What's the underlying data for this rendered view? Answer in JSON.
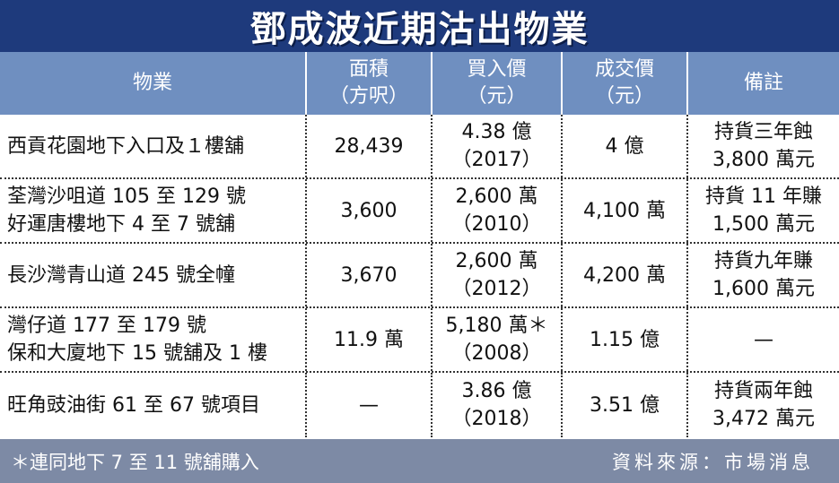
{
  "title": "鄧成波近期沽出物業",
  "headers": [
    {
      "line1": "物業",
      "line2": ""
    },
    {
      "line1": "面積",
      "line2": "（方呎）"
    },
    {
      "line1": "買入價",
      "line2": "（元）"
    },
    {
      "line1": "成交價",
      "line2": "（元）"
    },
    {
      "line1": "備註",
      "line2": ""
    }
  ],
  "rows": [
    {
      "property": [
        "西貢花園地下入口及１樓舖"
      ],
      "area": "28,439",
      "buy": [
        "4.38 億",
        "（2017）"
      ],
      "sell": "4 億",
      "note": [
        "持貨三年蝕",
        "3,800 萬元"
      ]
    },
    {
      "property": [
        "荃灣沙咀道 105 至 129 號",
        "好運唐樓地下 4 至 7 號舖"
      ],
      "area": "3,600",
      "buy": [
        "2,600 萬",
        "（2010）"
      ],
      "sell": "4,100 萬",
      "note": [
        "持貨 11 年賺",
        "1,500 萬元"
      ]
    },
    {
      "property": [
        "長沙灣青山道 245 號全幢"
      ],
      "area": "3,670",
      "buy": [
        "2,600 萬",
        "（2012）"
      ],
      "sell": "4,200 萬",
      "note": [
        "持貨九年賺",
        "1,600 萬元"
      ]
    },
    {
      "property": [
        "灣仔道 177 至 179 號",
        "保和大廈地下 15 號舖及 1 樓"
      ],
      "area": "11.9 萬",
      "buy": [
        "5,180 萬＊",
        "（2008）"
      ],
      "sell": "1.15 億",
      "note": [
        "—"
      ]
    },
    {
      "property": [
        "旺角豉油街 61 至 67 號項目"
      ],
      "area": "—",
      "buy": [
        "3.86 億",
        "（2018）"
      ],
      "sell": "3.51 億",
      "note": [
        "持貨兩年蝕",
        "3,472 萬元"
      ]
    }
  ],
  "footer": {
    "footnote": "＊連同地下 7 至 11 號舖購入",
    "source": "資料來源：市場消息"
  }
}
